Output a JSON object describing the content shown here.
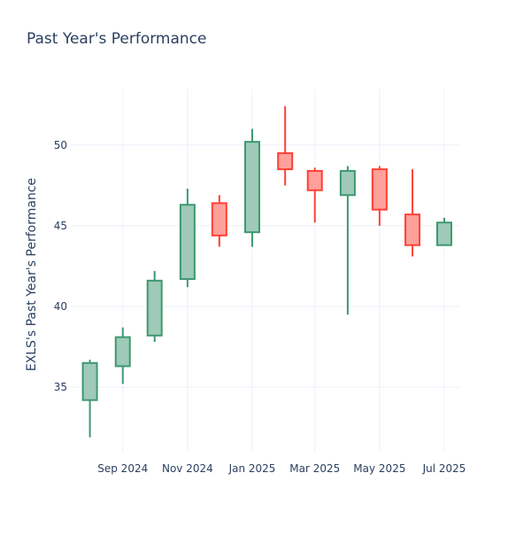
{
  "chart_data": {
    "type": "candlestick",
    "title": "Past Year's Performance",
    "xlabel": "",
    "ylabel": "EXLS's Past Year's Performance",
    "ylim": [
      31,
      53.5
    ],
    "yticks": [
      35,
      40,
      45,
      50
    ],
    "xticks": [
      {
        "date": "2024-09-01",
        "label": "Sep 2024"
      },
      {
        "date": "2024-11-01",
        "label": "Nov 2024"
      },
      {
        "date": "2025-01-01",
        "label": "Jan 2025"
      },
      {
        "date": "2025-03-01",
        "label": "Mar 2025"
      },
      {
        "date": "2025-05-01",
        "label": "May 2025"
      },
      {
        "date": "2025-07-01",
        "label": "Jul 2025"
      }
    ],
    "xrange": [
      "2024-07-14",
      "2025-07-16"
    ],
    "grid": true,
    "colors": {
      "increasing": "#3d9970",
      "increasing_fill": "#9ecab7",
      "decreasing": "#ff4136",
      "decreasing_fill": "#ffa09b"
    },
    "candles": [
      {
        "date": "2024-08-01",
        "open": 34.2,
        "high": 36.7,
        "low": 31.9,
        "close": 36.5
      },
      {
        "date": "2024-09-01",
        "open": 36.3,
        "high": 38.7,
        "low": 35.2,
        "close": 38.1
      },
      {
        "date": "2024-10-01",
        "open": 38.2,
        "high": 42.2,
        "low": 37.8,
        "close": 41.6
      },
      {
        "date": "2024-11-01",
        "open": 41.7,
        "high": 47.3,
        "low": 41.2,
        "close": 46.3
      },
      {
        "date": "2024-12-01",
        "open": 46.4,
        "high": 46.9,
        "low": 43.7,
        "close": 44.4
      },
      {
        "date": "2025-01-01",
        "open": 44.6,
        "high": 51.0,
        "low": 43.7,
        "close": 50.2
      },
      {
        "date": "2025-02-01",
        "open": 49.5,
        "high": 52.4,
        "low": 47.5,
        "close": 48.5
      },
      {
        "date": "2025-03-01",
        "open": 48.4,
        "high": 48.6,
        "low": 45.2,
        "close": 47.2
      },
      {
        "date": "2025-04-01",
        "open": 46.9,
        "high": 48.7,
        "low": 39.5,
        "close": 48.4
      },
      {
        "date": "2025-05-01",
        "open": 48.5,
        "high": 48.7,
        "low": 45.0,
        "close": 46.0
      },
      {
        "date": "2025-06-01",
        "open": 45.7,
        "high": 48.5,
        "low": 43.1,
        "close": 43.8
      },
      {
        "date": "2025-07-01",
        "open": 43.8,
        "high": 45.5,
        "low": 43.8,
        "close": 45.2
      }
    ]
  }
}
